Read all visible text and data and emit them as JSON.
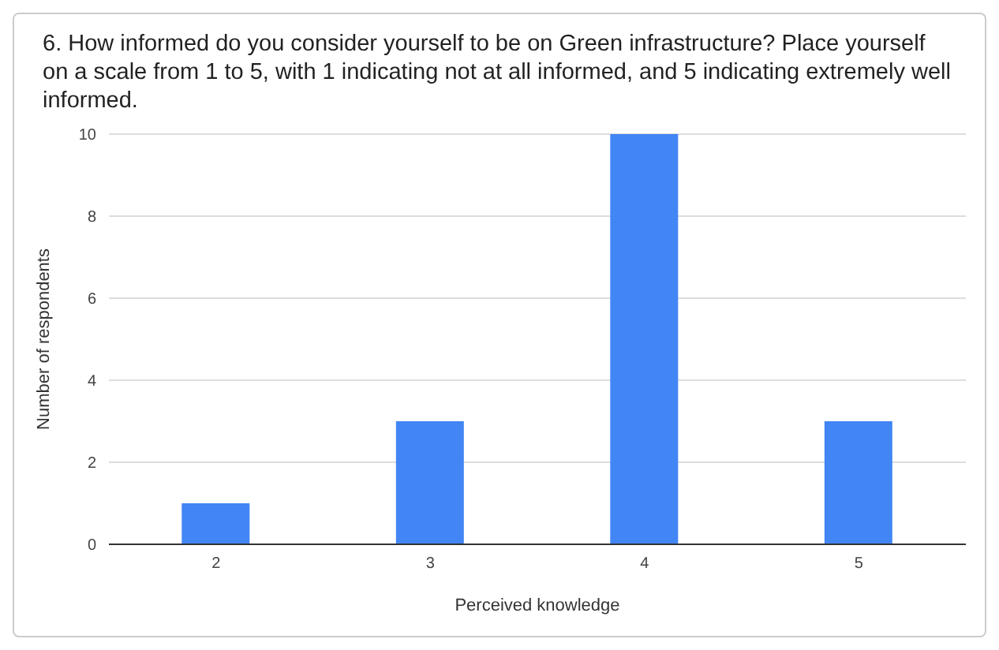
{
  "chart_data": {
    "type": "bar",
    "title": "6. How informed do you consider yourself to be on Green infrastructure? Place yourself on a scale from 1 to 5, with 1 indicating not at all informed, and 5 indicating extremely well informed.",
    "xlabel": "Perceived knowledge",
    "ylabel": "Number of respondents",
    "categories": [
      "2",
      "3",
      "4",
      "5"
    ],
    "values": [
      1,
      3,
      10,
      3
    ],
    "color": "#4285f4",
    "ylim": [
      0,
      10
    ],
    "yticks": [
      0,
      2,
      4,
      6,
      8,
      10
    ],
    "grid": "y"
  }
}
